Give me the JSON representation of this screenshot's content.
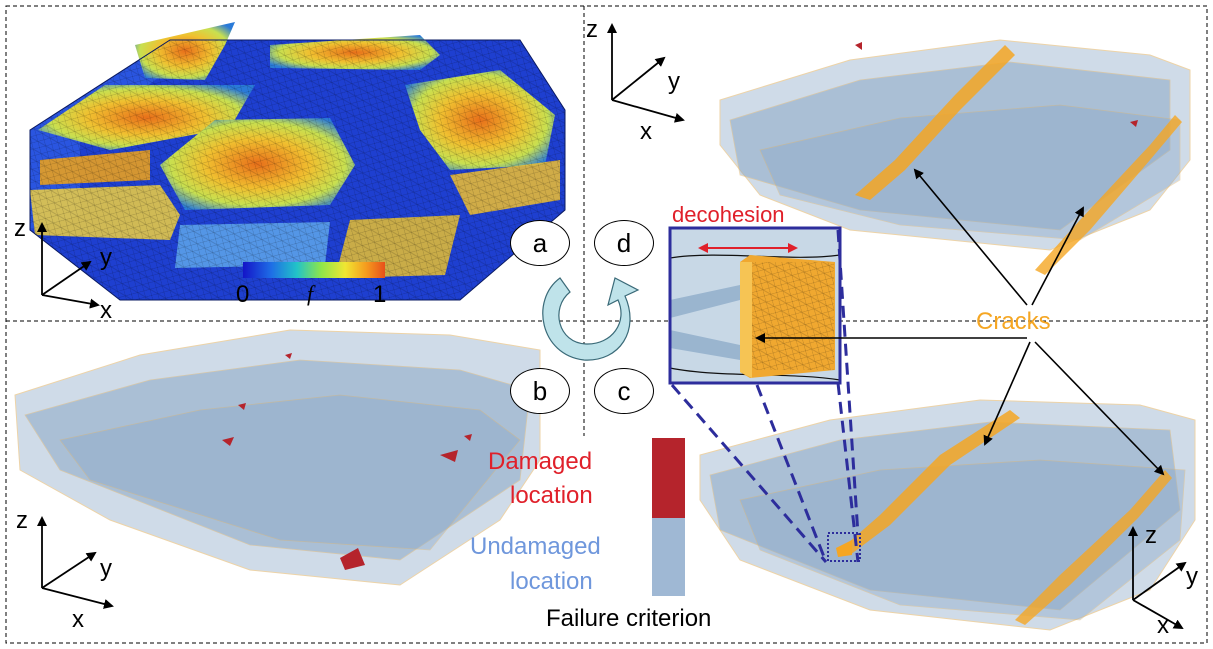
{
  "panels": {
    "a": "a",
    "b": "b",
    "c": "c",
    "d": "d"
  },
  "axes": {
    "x": "x",
    "y": "y",
    "z": "z"
  },
  "colorbar": {
    "min": "0",
    "max": "1",
    "symbol": "f",
    "colors": [
      "#1414c8",
      "#1e6ee6",
      "#22c3c8",
      "#8ee64a",
      "#f0e632",
      "#f59a1e",
      "#e8501a"
    ]
  },
  "labels": {
    "decohesion": "decohesion",
    "cracks": "Cracks",
    "damaged_line1": "Damaged",
    "damaged_line2": "location",
    "undamaged_line1": "Undamaged",
    "undamaged_line2": "location",
    "failure_criterion": "Failure criterion"
  },
  "legend_colors": {
    "damaged": "#b5242c",
    "undamaged": "#9fb8d4",
    "crack": "#f5a623",
    "decohesion_arrow": "#e0202a",
    "zoom_lines": "#2d2d9c"
  }
}
